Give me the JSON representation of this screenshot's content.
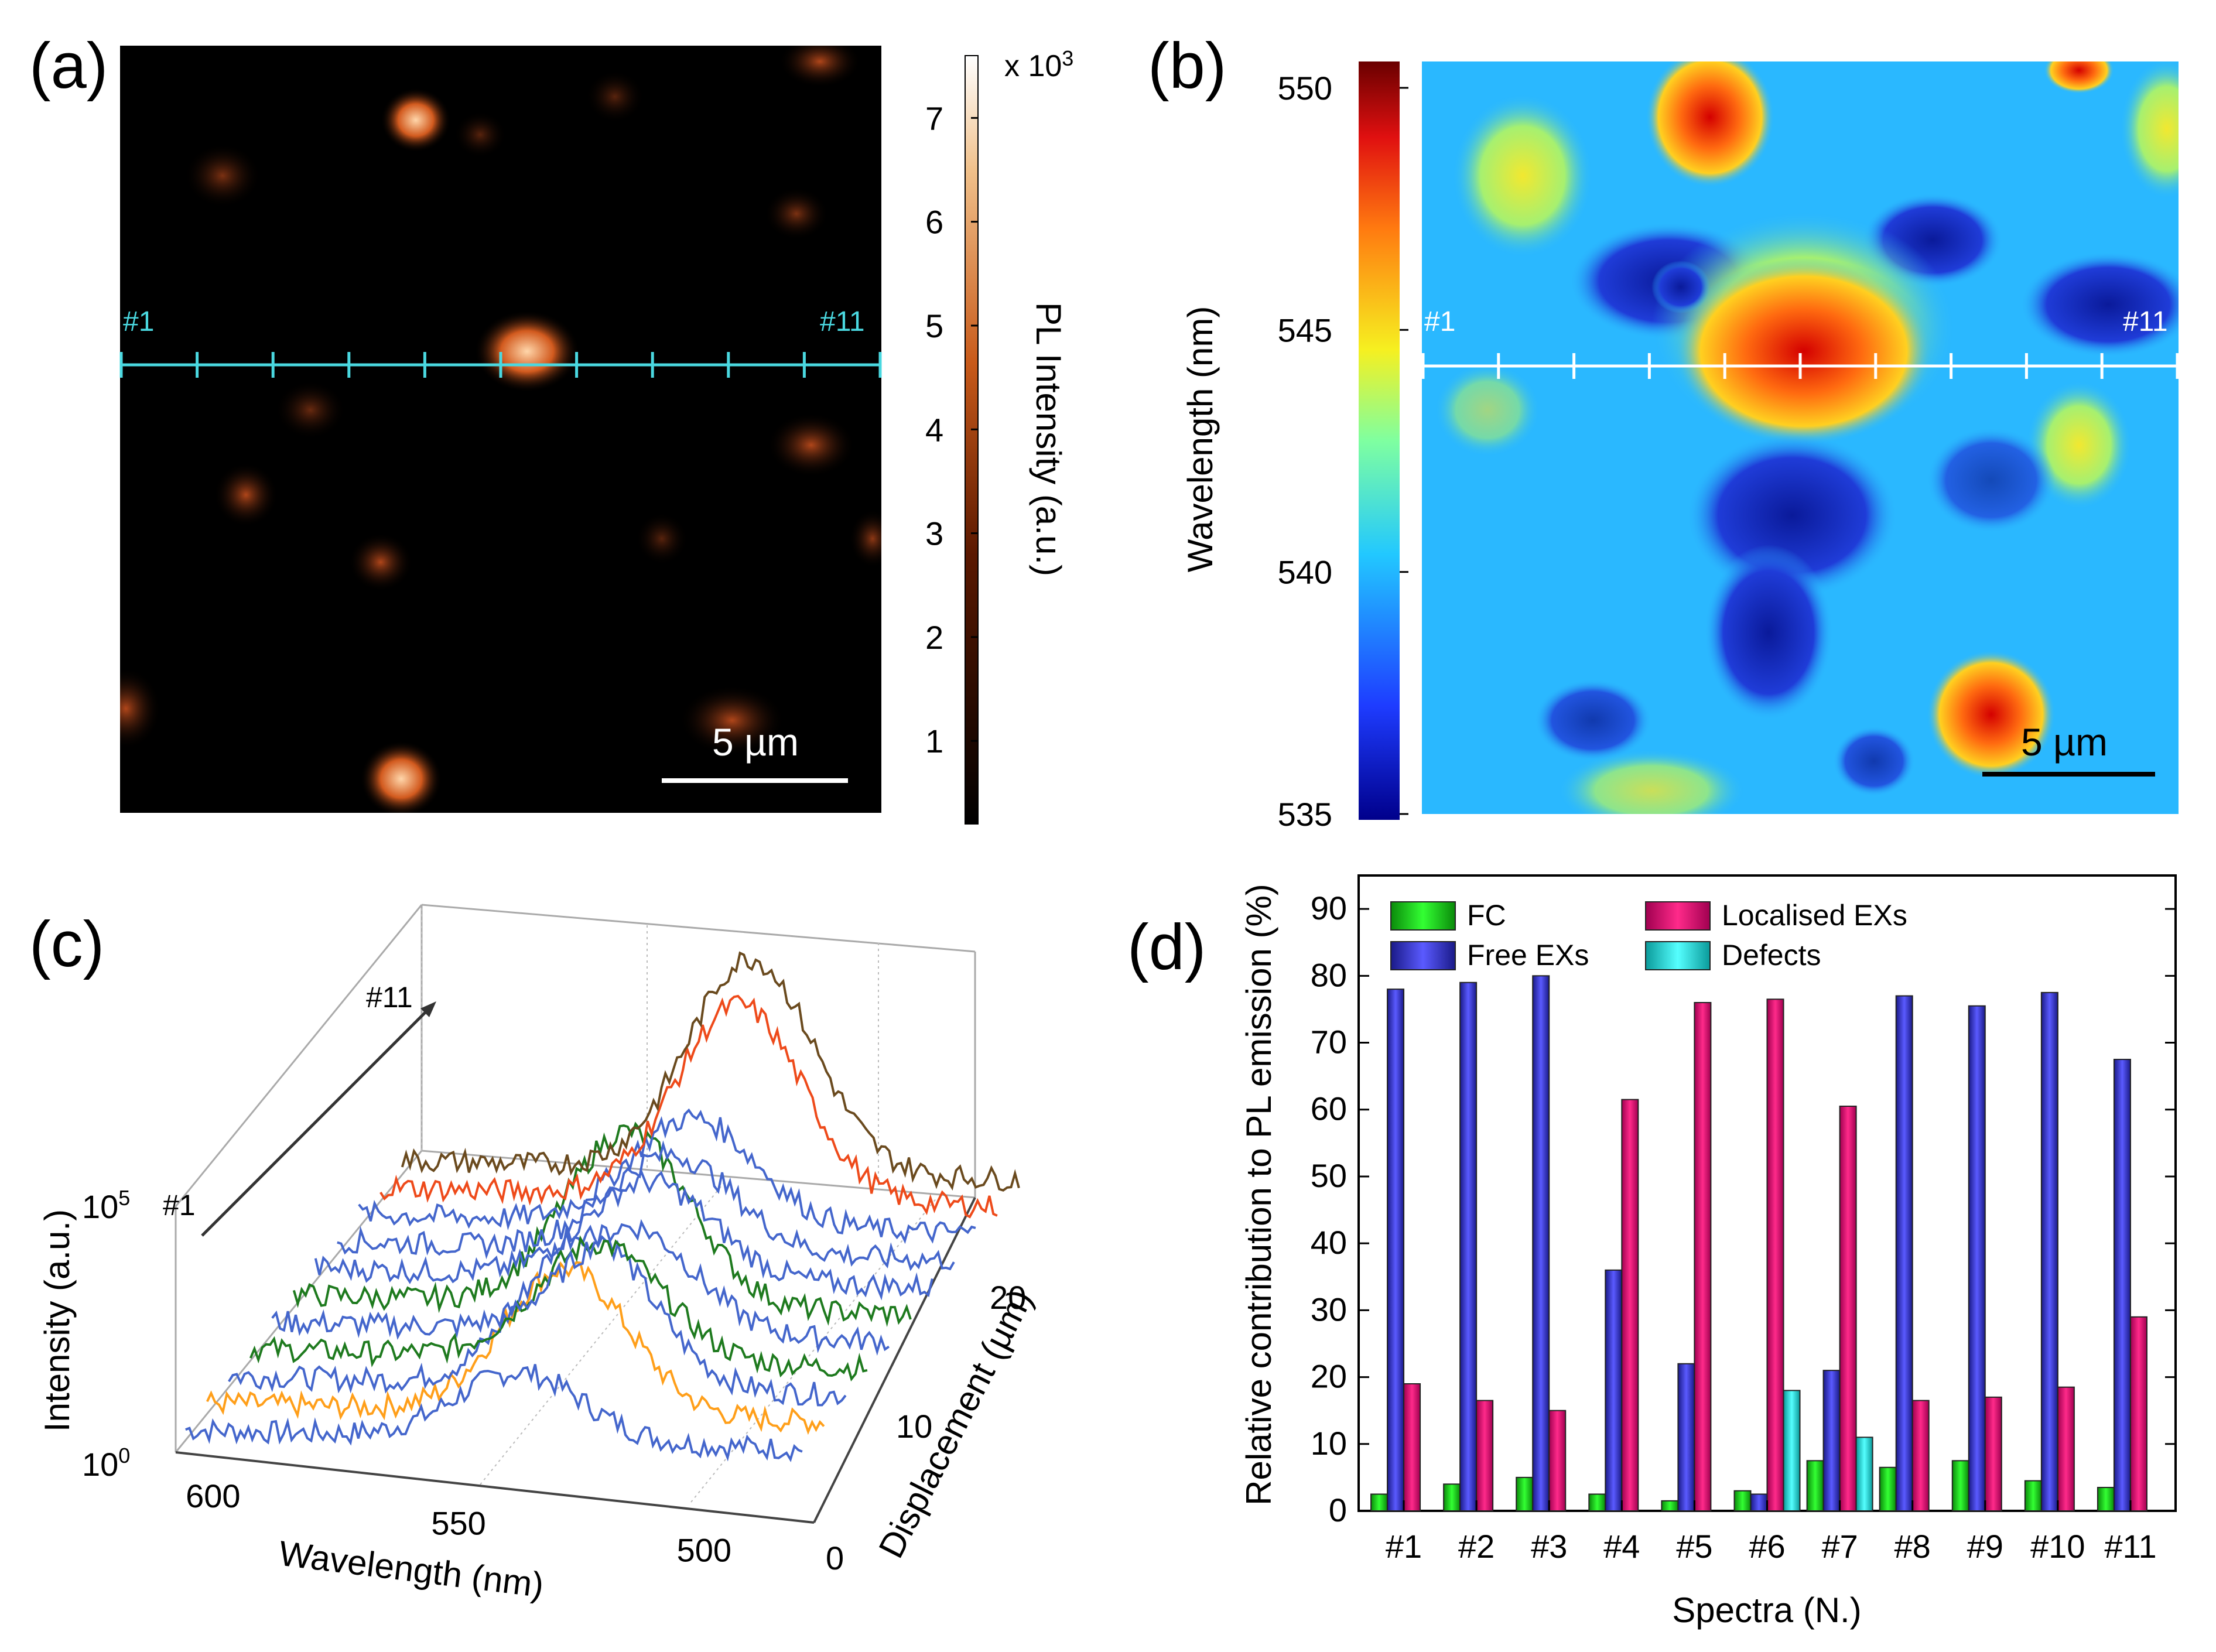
{
  "panels": {
    "a": {
      "label": "(a)",
      "colorbar": {
        "title": "PL Intensity (a.u.)",
        "multiplier": "x 10",
        "multiplier_exp": "3",
        "ticks": [
          "1",
          "2",
          "3",
          "4",
          "5",
          "6",
          "7"
        ],
        "range": [
          0.2,
          7.6
        ]
      },
      "scalebar": "5 µm",
      "line_start": "#1",
      "line_end": "#11",
      "line_color": "#4ad8e0"
    },
    "b": {
      "label": "(b)",
      "colorbar": {
        "title": "Wavelength (nm)",
        "ticks": [
          "535",
          "540",
          "545",
          "550"
        ],
        "range": [
          535,
          550
        ]
      },
      "scalebar": "5 µm",
      "line_start": "#1",
      "line_end": "#11",
      "line_color": "#ffffff"
    },
    "c": {
      "label": "(c)",
      "arrow_start": "#1",
      "arrow_end": "#11"
    },
    "d": {
      "label": "(d)"
    }
  },
  "chart_data": [
    {
      "panel": "c",
      "type": "line",
      "title": "",
      "xlabel": "Wavelength (nm)",
      "ylabel": "Intensity (a.u.)",
      "zlabel": "Displacement (µm)",
      "x_ticks": [
        "600",
        "550",
        "500"
      ],
      "y_ticks": [
        "10",
        "10"
      ],
      "y_tick_exps": [
        "0",
        "5"
      ],
      "z_ticks": [
        "0",
        "10",
        "20"
      ],
      "series": [
        {
          "name": "#1",
          "color": "#4466cc",
          "displacement": 0,
          "peak": 540,
          "amplitude": 0.35
        },
        {
          "name": "#2",
          "color": "#ff9f1a",
          "displacement": 2,
          "peak": 535,
          "amplitude": 0.75
        },
        {
          "name": "#3",
          "color": "#4466cc",
          "displacement": 4,
          "peak": 535,
          "amplitude": 0.8
        },
        {
          "name": "#4",
          "color": "#1e7a1e",
          "displacement": 6,
          "peak": 537,
          "amplitude": 0.6
        },
        {
          "name": "#5",
          "color": "#4466cc",
          "displacement": 8,
          "peak": 535,
          "amplitude": 0.55
        },
        {
          "name": "#6",
          "color": "#1e7a1e",
          "displacement": 10,
          "peak": 540,
          "amplitude": 0.9
        },
        {
          "name": "#7",
          "color": "#4466cc",
          "displacement": 12,
          "peak": 540,
          "amplitude": 0.5
        },
        {
          "name": "#8",
          "color": "#4466cc",
          "displacement": 14,
          "peak": 540,
          "amplitude": 0.5
        },
        {
          "name": "#9",
          "color": "#4466cc",
          "displacement": 16,
          "peak": 540,
          "amplitude": 0.55
        },
        {
          "name": "#10",
          "color": "#ee4a1a",
          "displacement": 18,
          "peak": 535,
          "amplitude": 1.0
        },
        {
          "name": "#11",
          "color": "#6a4a1e",
          "displacement": 20,
          "peak": 537,
          "amplitude": 1.1
        }
      ]
    },
    {
      "panel": "d",
      "type": "bar",
      "title": "",
      "xlabel": "Spectra (N.)",
      "ylabel": "Relative contribution to PL emission (%)",
      "ylim": [
        0,
        95
      ],
      "y_ticks": [
        0,
        10,
        20,
        30,
        40,
        50,
        60,
        70,
        80,
        90
      ],
      "categories": [
        "#1",
        "#2",
        "#3",
        "#4",
        "#5",
        "#6",
        "#7",
        "#8",
        "#9",
        "#10",
        "#11"
      ],
      "series": [
        {
          "name": "FC",
          "color": "#22cc22",
          "values": [
            2.5,
            4,
            5,
            2.5,
            1.5,
            3,
            7.5,
            6.5,
            7.5,
            4.5,
            3.5
          ]
        },
        {
          "name": "Free EXs",
          "color": "#4444dd",
          "values": [
            78,
            79,
            80,
            36,
            22,
            2.5,
            21,
            77,
            75.5,
            77.5,
            67.5
          ]
        },
        {
          "name": "Localised EXs",
          "color": "#e0106e",
          "values": [
            19,
            16.5,
            15,
            61.5,
            76,
            76.5,
            60.5,
            16.5,
            17,
            18.5,
            29
          ]
        },
        {
          "name": "Defects",
          "color": "#22dddd",
          "values": [
            0,
            0,
            0,
            0,
            0,
            18,
            11,
            0,
            0,
            0,
            0
          ]
        }
      ],
      "legend_order": [
        "FC",
        "Localised EXs",
        "Free EXs",
        "Defects"
      ]
    }
  ]
}
